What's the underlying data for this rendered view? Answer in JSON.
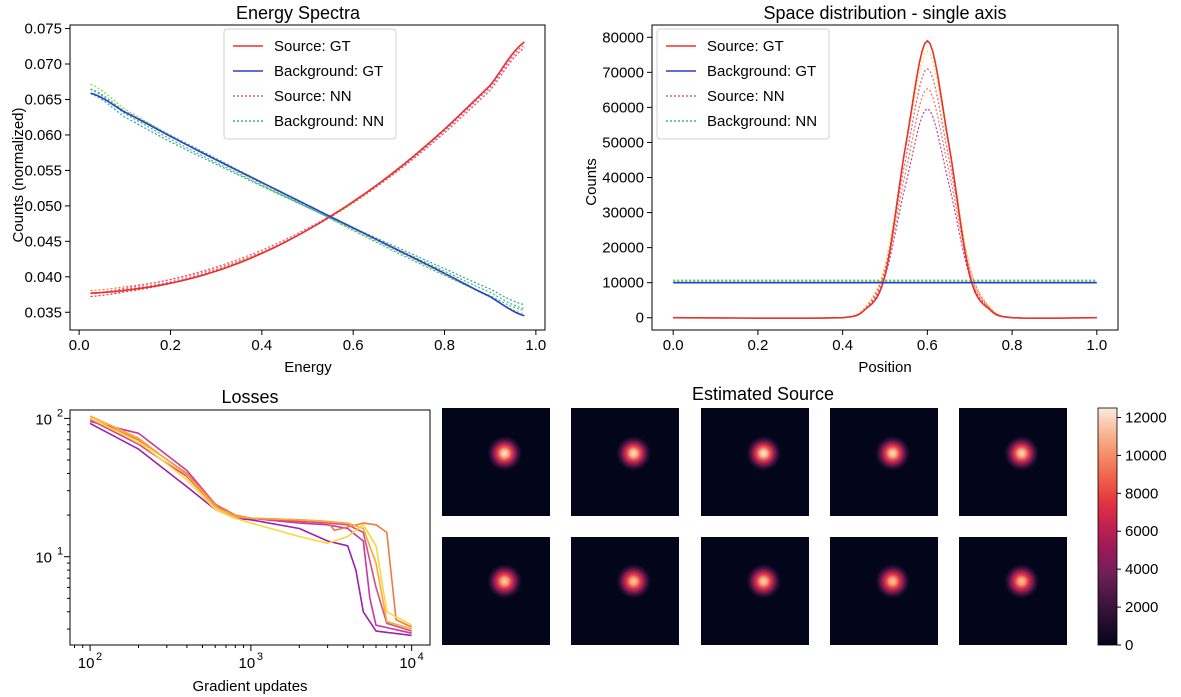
{
  "chart_data": [
    {
      "type": "line",
      "title": "Energy Spectra",
      "xlabel": "Energy",
      "ylabel": "Counts (normalized)",
      "xlim": [
        -0.02,
        1.02
      ],
      "ylim": [
        0.0325,
        0.0755
      ],
      "xticks": [
        "0.0",
        "0.2",
        "0.4",
        "0.6",
        "0.8",
        "1.0"
      ],
      "yticks": [
        "0.035",
        "0.040",
        "0.045",
        "0.050",
        "0.055",
        "0.060",
        "0.065",
        "0.070",
        "0.075"
      ],
      "legend_position": "upper center",
      "legend": [
        "Source: GT",
        "Background: GT",
        "Source: NN",
        "Background: NN"
      ],
      "series": [
        {
          "name": "Source: GT",
          "color": "#e8322d",
          "style": "solid",
          "x": [
            0.025,
            0.1,
            0.2,
            0.3,
            0.4,
            0.5,
            0.6,
            0.7,
            0.8,
            0.9,
            0.975
          ],
          "y": [
            0.0377,
            0.0381,
            0.0391,
            0.0408,
            0.0433,
            0.0466,
            0.0506,
            0.0553,
            0.0608,
            0.067,
            0.0731
          ]
        },
        {
          "name": "Background: GT",
          "color": "#2a3fcf",
          "style": "solid",
          "x": [
            0.025,
            0.1,
            0.2,
            0.3,
            0.4,
            0.5,
            0.6,
            0.7,
            0.8,
            0.9,
            0.975
          ],
          "y": [
            0.0659,
            0.0632,
            0.0598,
            0.0565,
            0.0533,
            0.0501,
            0.0469,
            0.0437,
            0.0405,
            0.0372,
            0.0345
          ]
        },
        {
          "name": "Source: NN",
          "color": "#e05a8a",
          "style": "dotted",
          "x": [
            0.025,
            0.1,
            0.2,
            0.3,
            0.4,
            0.5,
            0.6,
            0.7,
            0.8,
            0.9,
            0.975
          ],
          "y": [
            0.0376,
            0.0382,
            0.0393,
            0.041,
            0.0434,
            0.0466,
            0.0505,
            0.0552,
            0.0606,
            0.0667,
            0.0727
          ]
        },
        {
          "name": "Background: NN",
          "color": "#3db87a",
          "style": "dotted",
          "x": [
            0.025,
            0.1,
            0.2,
            0.3,
            0.4,
            0.5,
            0.6,
            0.7,
            0.8,
            0.9,
            0.975
          ],
          "y": [
            0.0664,
            0.063,
            0.0594,
            0.0561,
            0.0529,
            0.0498,
            0.0468,
            0.0438,
            0.0408,
            0.0378,
            0.0355
          ]
        }
      ]
    },
    {
      "type": "line",
      "title": "Space distribution - single axis",
      "xlabel": "Position",
      "ylabel": "Counts",
      "xlim": [
        -0.05,
        1.05
      ],
      "ylim": [
        -3500,
        83500
      ],
      "xticks": [
        "0.0",
        "0.2",
        "0.4",
        "0.6",
        "0.8",
        "1.0"
      ],
      "yticks": [
        "0",
        "10000",
        "20000",
        "30000",
        "40000",
        "50000",
        "60000",
        "70000",
        "80000"
      ],
      "legend_position": "upper left",
      "legend": [
        "Source: GT",
        "Background: GT",
        "Source: NN",
        "Background: NN"
      ],
      "series": [
        {
          "name": "Source: GT",
          "color": "#e8322d",
          "style": "solid",
          "x": [
            0.0,
            0.4,
            0.45,
            0.5,
            0.55,
            0.6,
            0.65,
            0.7,
            0.75,
            0.8,
            1.0
          ],
          "y": [
            0,
            0,
            2000,
            12000,
            50000,
            79000,
            50000,
            12000,
            2000,
            0,
            0
          ]
        },
        {
          "name": "Background: GT",
          "color": "#2a3fcf",
          "style": "solid",
          "x": [
            0.0,
            1.0
          ],
          "y": [
            10000,
            10000
          ]
        },
        {
          "name": "Source: NN",
          "color": "#e05a8a",
          "style": "dotted",
          "x": [
            0.0,
            0.4,
            0.45,
            0.5,
            0.55,
            0.6,
            0.65,
            0.7,
            0.75,
            0.8,
            1.0
          ],
          "y": [
            0,
            0,
            2500,
            14000,
            46000,
            71000,
            46000,
            14000,
            2500,
            0,
            0
          ]
        },
        {
          "name": "Background: NN",
          "color": "#3db87a",
          "style": "dotted",
          "x": [
            0.0,
            1.0
          ],
          "y": [
            10400,
            10400
          ]
        }
      ]
    },
    {
      "type": "line",
      "title": "Losses",
      "xlabel": "Gradient updates",
      "ylabel": "",
      "xscale": "log",
      "yscale": "log",
      "xlim": [
        75,
        13000
      ],
      "ylim": [
        2.3,
        115
      ],
      "xticks": [
        {
          "base": "10",
          "exp": "2"
        },
        {
          "base": "10",
          "exp": "3"
        },
        {
          "base": "10",
          "exp": "4"
        }
      ],
      "yticks": [
        {
          "base": "10",
          "exp": "1"
        },
        {
          "base": "10",
          "exp": "2"
        }
      ],
      "series": [
        {
          "color": "#9b1fb0",
          "x": [
            100,
            200,
            400,
            600,
            800,
            1000,
            2000,
            3000,
            4000,
            4500,
            5000,
            6000,
            10000
          ],
          "y": [
            92,
            60,
            32,
            22,
            19,
            18.5,
            16,
            13,
            12,
            8,
            4,
            2.9,
            2.7
          ]
        },
        {
          "color": "#c43aa0",
          "x": [
            100,
            200,
            400,
            600,
            800,
            1000,
            2000,
            3000,
            4000,
            5000,
            5500,
            6000,
            10000
          ],
          "y": [
            95,
            78,
            42,
            24,
            19,
            19,
            17.5,
            17,
            16,
            13,
            5,
            3.2,
            2.8
          ]
        },
        {
          "color": "#d8507a",
          "x": [
            100,
            200,
            400,
            600,
            800,
            1000,
            2000,
            3000,
            4000,
            5000,
            6000,
            7000,
            10000
          ],
          "y": [
            98,
            65,
            38,
            23,
            19.5,
            19,
            18,
            17.5,
            17,
            15,
            6,
            3.3,
            2.9
          ]
        },
        {
          "color": "#f07a40",
          "x": [
            100,
            200,
            400,
            600,
            800,
            1000,
            2000,
            3000,
            3300,
            5000,
            6000,
            7000,
            8000,
            10000
          ],
          "y": [
            100,
            70,
            40,
            24,
            20,
            19,
            18.5,
            18,
            15.5,
            17.5,
            17,
            15,
            3.5,
            3.1
          ]
        },
        {
          "color": "#f9a93a",
          "x": [
            100,
            200,
            400,
            600,
            800,
            1000,
            2000,
            3000,
            4000,
            5000,
            6000,
            7000,
            10000
          ],
          "y": [
            104,
            72,
            39,
            23,
            19.5,
            19,
            18.5,
            18,
            17.5,
            16,
            9,
            3.4,
            3.0
          ]
        },
        {
          "color": "#fdd63a",
          "x": [
            100,
            200,
            400,
            600,
            800,
            1000,
            2000,
            3000,
            4000,
            5000,
            6000,
            7000,
            10000
          ],
          "y": [
            100,
            68,
            36,
            22,
            19,
            17.5,
            14,
            12.5,
            14,
            17,
            12,
            4,
            3.2
          ]
        }
      ]
    },
    {
      "type": "heatmap",
      "title": "Estimated Source",
      "colormap": "rocket",
      "colorbar_range": [
        0,
        12500
      ],
      "colorbar_ticks": [
        "0",
        "2000",
        "4000",
        "6000",
        "8000",
        "10000",
        "12000"
      ],
      "panels": [
        {
          "cx": 0.58,
          "cy": 0.42,
          "peak": 12400
        },
        {
          "cx": 0.58,
          "cy": 0.42,
          "peak": 12300
        },
        {
          "cx": 0.58,
          "cy": 0.42,
          "peak": 12500
        },
        {
          "cx": 0.58,
          "cy": 0.42,
          "peak": 12200
        },
        {
          "cx": 0.58,
          "cy": 0.42,
          "peak": 12100
        },
        {
          "cx": 0.58,
          "cy": 0.41,
          "peak": 11800
        },
        {
          "cx": 0.58,
          "cy": 0.41,
          "peak": 11700
        },
        {
          "cx": 0.58,
          "cy": 0.41,
          "peak": 11900
        },
        {
          "cx": 0.58,
          "cy": 0.41,
          "peak": 11600
        },
        {
          "cx": 0.58,
          "cy": 0.41,
          "peak": 11500
        }
      ]
    }
  ]
}
